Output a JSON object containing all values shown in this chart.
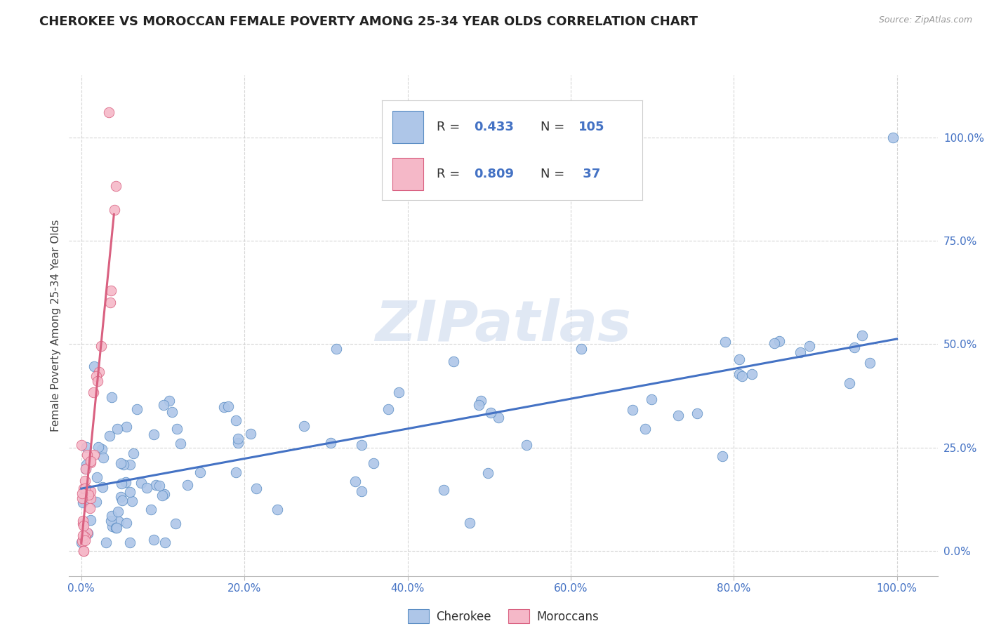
{
  "title": "CHEROKEE VS MOROCCAN FEMALE POVERTY AMONG 25-34 YEAR OLDS CORRELATION CHART",
  "source": "Source: ZipAtlas.com",
  "ylabel": "Female Poverty Among 25-34 Year Olds",
  "cherokee_R": 0.433,
  "cherokee_N": 105,
  "moroccan_R": 0.809,
  "moroccan_N": 37,
  "cherokee_color": "#aec6e8",
  "cherokee_edge_color": "#5b8ec4",
  "cherokee_line_color": "#4472c4",
  "moroccan_color": "#f5b8c8",
  "moroccan_edge_color": "#d96080",
  "moroccan_line_color": "#d96080",
  "stat_color": "#4472c4",
  "label_color": "#4472c4",
  "watermark_color": "#ccd9ee",
  "background_color": "#ffffff",
  "grid_color": "#cccccc",
  "title_fontsize": 13,
  "source_fontsize": 9,
  "tick_fontsize": 11,
  "ylabel_fontsize": 11,
  "legend_fontsize": 13,
  "watermark_text": "ZIPatlas",
  "cherokee_label": "Cherokee",
  "moroccan_label": "Moroccans",
  "legend_r_label": "R = ",
  "legend_n_label": "N = "
}
